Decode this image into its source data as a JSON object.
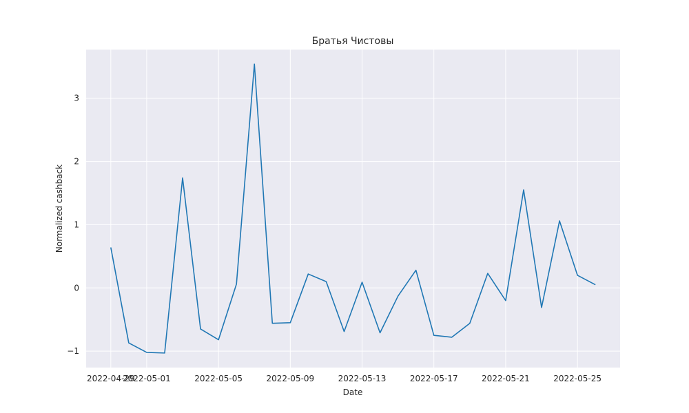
{
  "chart_data": {
    "type": "line",
    "title": "Братья Чистовы",
    "xlabel": "Date",
    "ylabel": "Normalized cashback",
    "x_start": "2022-04-29",
    "x": [
      "2022-04-29",
      "2022-04-30",
      "2022-05-01",
      "2022-05-02",
      "2022-05-03",
      "2022-05-04",
      "2022-05-05",
      "2022-05-06",
      "2022-05-07",
      "2022-05-08",
      "2022-05-09",
      "2022-05-10",
      "2022-05-11",
      "2022-05-12",
      "2022-05-13",
      "2022-05-14",
      "2022-05-15",
      "2022-05-16",
      "2022-05-17",
      "2022-05-18",
      "2022-05-19",
      "2022-05-20",
      "2022-05-21",
      "2022-05-22",
      "2022-05-23",
      "2022-05-24",
      "2022-05-25",
      "2022-05-26"
    ],
    "series": [
      {
        "values": [
          0.64,
          -0.87,
          -1.02,
          -1.03,
          1.74,
          -0.65,
          -0.82,
          0.06,
          3.54,
          -0.56,
          -0.55,
          0.22,
          0.1,
          -0.69,
          0.09,
          -0.71,
          -0.13,
          0.28,
          -0.75,
          -0.78,
          -0.56,
          0.23,
          -0.2,
          1.55,
          -0.31,
          1.06,
          0.2,
          0.05
        ],
        "color": "#1f77b4"
      }
    ],
    "x_ticks": [
      "2022-04-29",
      "2022-05-01",
      "2022-05-05",
      "2022-05-09",
      "2022-05-13",
      "2022-05-17",
      "2022-05-21",
      "2022-05-25"
    ],
    "x_tick_labels": [
      "2022-04-29",
      "2022-05-01",
      "2022-05-05",
      "2022-05-09",
      "2022-05-13",
      "2022-05-17",
      "2022-05-21",
      "2022-05-25"
    ],
    "y_ticks": [
      -1,
      0,
      1,
      2,
      3
    ],
    "y_tick_labels": [
      "−1",
      "0",
      "1",
      "2",
      "3"
    ],
    "xlim": [
      "2022-04-27T15:00",
      "2022-05-27T09:00"
    ],
    "ylim": [
      -1.26,
      3.77
    ],
    "grid": true
  }
}
